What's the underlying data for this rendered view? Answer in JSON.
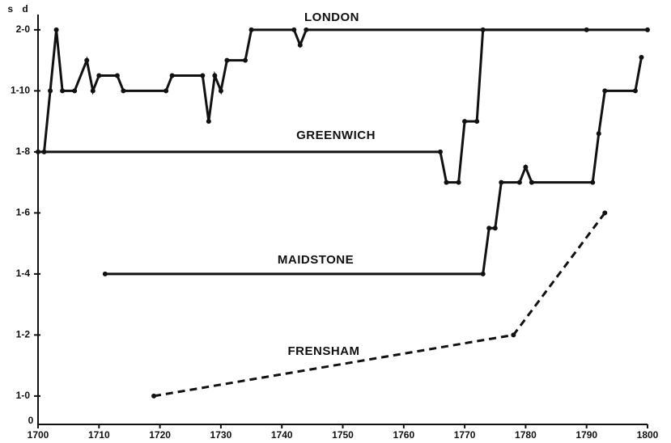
{
  "chart_data": {
    "type": "line",
    "y_label": "s d",
    "origin_label": "0",
    "xlim": [
      1700,
      1800
    ],
    "xticks": [
      1700,
      1710,
      1720,
      1730,
      1740,
      1750,
      1760,
      1770,
      1780,
      1790,
      1800
    ],
    "ylim": [
      11.07,
      24.5
    ],
    "yticks": [
      {
        "value": 12,
        "label": "1-0"
      },
      {
        "value": 14,
        "label": "1-2"
      },
      {
        "value": 16,
        "label": "1-4"
      },
      {
        "value": 18,
        "label": "1-6"
      },
      {
        "value": 20,
        "label": "1-8"
      },
      {
        "value": 22,
        "label": "1-10"
      },
      {
        "value": 24,
        "label": "2-0"
      }
    ],
    "series": [
      {
        "name": "LONDON",
        "color": "#111111",
        "dash": "solid",
        "x": [
          1701,
          1702,
          1703,
          1704,
          1706,
          1708,
          1709,
          1710,
          1713,
          1714,
          1721,
          1722,
          1727,
          1728,
          1729,
          1730,
          1731,
          1734,
          1735,
          1742,
          1743,
          1744,
          1800
        ],
        "values": [
          20,
          22,
          24,
          22,
          22,
          23,
          22,
          22.5,
          22.5,
          22,
          22,
          22.5,
          22.5,
          21,
          22.5,
          22,
          23,
          23,
          24,
          24,
          23.5,
          24,
          24
        ]
      },
      {
        "name": "GREENWICH",
        "color": "#111111",
        "dash": "solid",
        "x": [
          1700,
          1766,
          1767,
          1769,
          1770,
          1772,
          1773,
          1790
        ],
        "values": [
          20,
          20,
          19,
          19,
          21,
          21,
          24,
          24
        ]
      },
      {
        "name": "MAIDSTONE",
        "color": "#111111",
        "dash": "solid",
        "x": [
          1711,
          1773,
          1774,
          1775,
          1776,
          1779,
          1780,
          1781,
          1791,
          1792,
          1793,
          1798,
          1799
        ],
        "values": [
          16,
          16,
          17.5,
          17.5,
          19,
          19,
          19.5,
          19,
          19,
          20.6,
          22,
          22,
          23.1
        ]
      },
      {
        "name": "FRENSHAM",
        "color": "#111111",
        "dash": "dashed",
        "x": [
          1719,
          1778,
          1793
        ],
        "values": [
          12,
          14,
          18
        ]
      }
    ]
  }
}
